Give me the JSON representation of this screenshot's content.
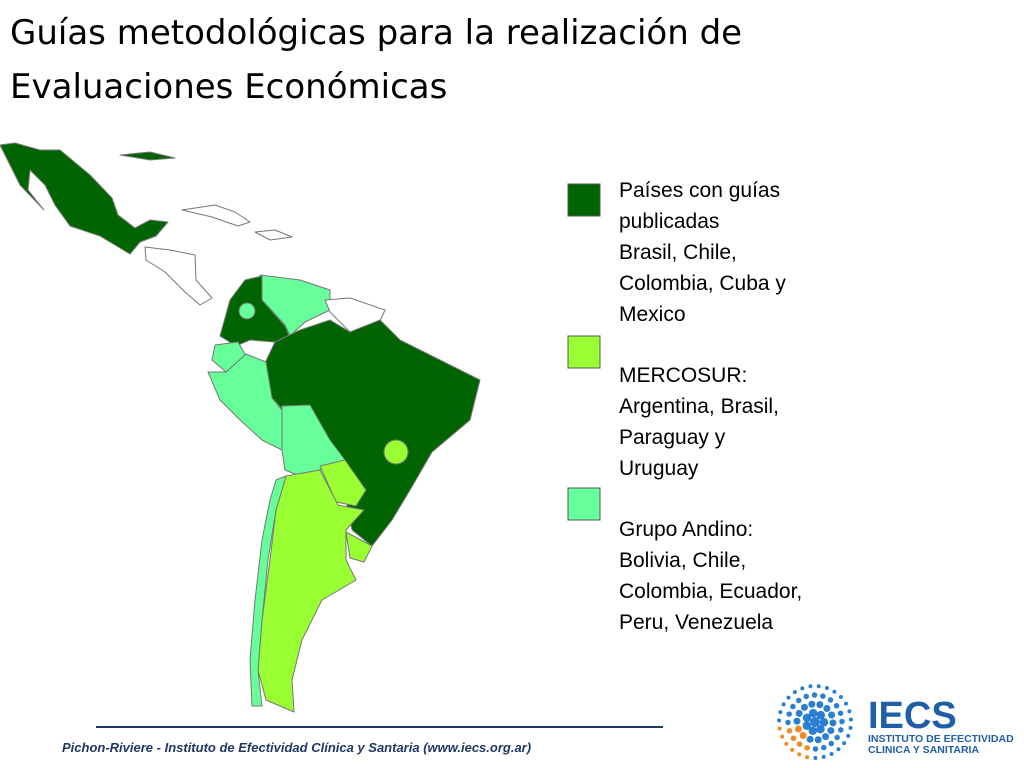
{
  "title": [
    "Guías metodológicas para la realización de",
    "Evaluaciones Económicas"
  ],
  "legend": [
    {
      "color": "#006400",
      "lines": [
        "Países con guías",
        "publicadas",
        "Brasil, Chile,",
        "Colombia, Cuba y",
        "Mexico"
      ]
    },
    {
      "color": "#99ff33",
      "lines": [
        "MERCOSUR:",
        "Argentina, Brasil,",
        "Paraguay y",
        "Uruguay"
      ]
    },
    {
      "color": "#66ff99",
      "lines": [
        "Grupo Andino:",
        "Bolivia, Chile,",
        "Colombia, Ecuador,",
        "Peru, Venezuela"
      ]
    }
  ],
  "footer": "Pichon-Riviere - Instituto de Efectividad Clínica y Santaria (www.iecs.org.ar)",
  "logo": {
    "name": "IECS",
    "lines": [
      "INSTITUTO DE EFECTIVIDAD",
      "CLINICA Y SANITARIA"
    ]
  }
}
